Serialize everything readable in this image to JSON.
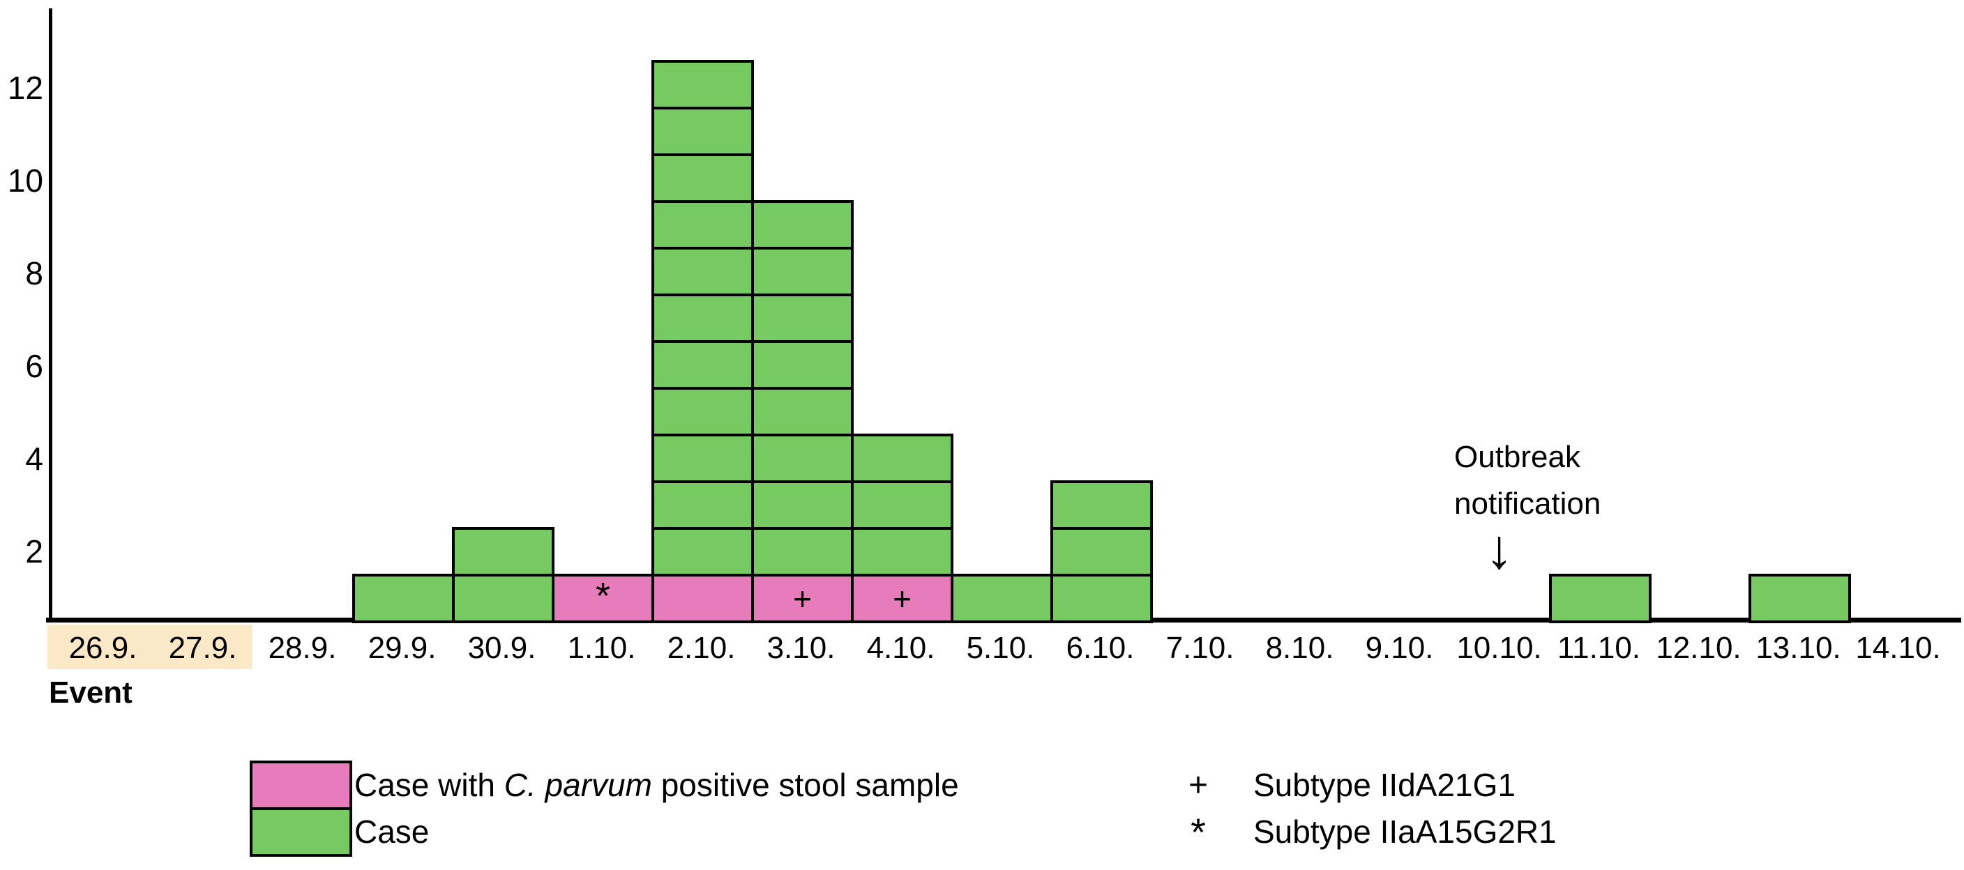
{
  "colors": {
    "case_green": "#77C961",
    "positive_pink": "#E77CBA",
    "event_highlight": "#FBE8C6",
    "axis_black": "#000000",
    "background": "#FFFFFF"
  },
  "axis": {
    "event_label": "Event"
  },
  "annotation": {
    "line1": "Outbreak",
    "line2": "notification",
    "arrow": "↓",
    "above_category": "10.10."
  },
  "legend": {
    "case_positive": {
      "prefix": "Case with ",
      "italic": "C. parvum",
      "suffix": " positive stool sample"
    },
    "case": "Case",
    "subtype_plus_symbol": "+",
    "subtype_plus_label": "Subtype IIdA21G1",
    "subtype_star_symbol": "*",
    "subtype_star_label": "Subtype IIaA15G2R1"
  },
  "chart_data": {
    "type": "bar",
    "subtype": "stacked-unit-box-epicurve",
    "title": "",
    "xlabel": "",
    "ylabel": "",
    "categories": [
      "26.9.",
      "27.9.",
      "28.9.",
      "29.9.",
      "30.9.",
      "1.10.",
      "2.10.",
      "3.10.",
      "4.10.",
      "5.10.",
      "6.10.",
      "7.10.",
      "8.10.",
      "9.10.",
      "10.10.",
      "11.10.",
      "12.10.",
      "13.10.",
      "14.10."
    ],
    "series": [
      {
        "name": "Case with C. parvum positive stool sample",
        "color_key": "positive_pink",
        "values": [
          0,
          0,
          0,
          0,
          0,
          1,
          1,
          1,
          1,
          0,
          0,
          0,
          0,
          0,
          0,
          0,
          0,
          0,
          0
        ]
      },
      {
        "name": "Case",
        "color_key": "case_green",
        "values": [
          0,
          0,
          0,
          1,
          2,
          0,
          11,
          8,
          3,
          1,
          3,
          0,
          0,
          0,
          0,
          1,
          0,
          1,
          0
        ]
      }
    ],
    "totals_per_day": [
      0,
      0,
      0,
      1,
      2,
      1,
      12,
      9,
      4,
      1,
      3,
      0,
      0,
      0,
      0,
      1,
      0,
      1,
      0
    ],
    "box_symbols": {
      "1.10.": "*",
      "3.10.": "+",
      "4.10.": "+"
    },
    "highlighted_categories": [
      "26.9.",
      "27.9."
    ],
    "yticks": [
      2,
      4,
      6,
      8,
      10,
      12
    ],
    "ylim": [
      0,
      13
    ],
    "grid": false,
    "legend_position": "bottom"
  }
}
